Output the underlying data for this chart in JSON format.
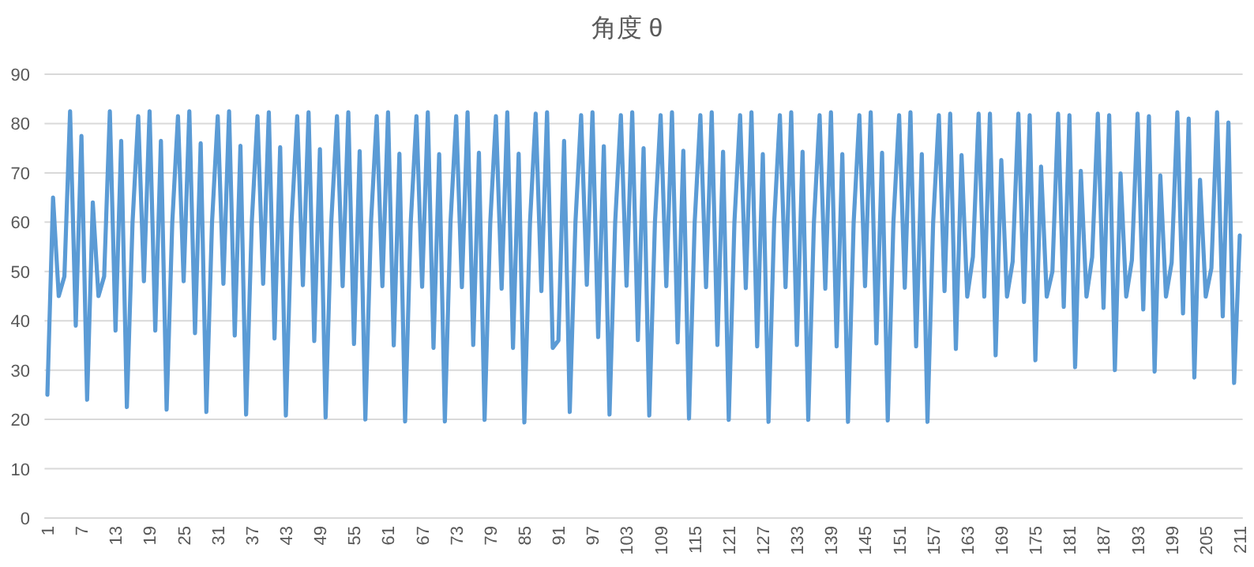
{
  "chart_data": {
    "type": "line",
    "title": "角度 θ",
    "categories": [
      "1",
      null,
      null,
      null,
      null,
      null,
      "7",
      null,
      null,
      null,
      null,
      null,
      "13",
      null,
      null,
      null,
      null,
      null,
      "19",
      null,
      null,
      null,
      null,
      null,
      "25",
      null,
      null,
      null,
      null,
      null,
      "31",
      null,
      null,
      null,
      null,
      null,
      "37",
      null,
      null,
      null,
      null,
      null,
      "43",
      null,
      null,
      null,
      null,
      null,
      "49",
      null,
      null,
      null,
      null,
      null,
      "55",
      null,
      null,
      null,
      null,
      null,
      "61",
      null,
      null,
      null,
      null,
      null,
      "67",
      null,
      null,
      null,
      null,
      null,
      "73",
      null,
      null,
      null,
      null,
      null,
      "79",
      null,
      null,
      null,
      null,
      null,
      "85",
      null,
      null,
      null,
      null,
      null,
      "91",
      null,
      null,
      null,
      null,
      null,
      "97",
      null,
      null,
      null,
      null,
      null,
      "103",
      null,
      null,
      null,
      null,
      null,
      "109",
      null,
      null,
      null,
      null,
      null,
      "115",
      null,
      null,
      null,
      null,
      null,
      "121",
      null,
      null,
      null,
      null,
      null,
      "127",
      null,
      null,
      null,
      null,
      null,
      "133",
      null,
      null,
      null,
      null,
      null,
      "139",
      null,
      null,
      null,
      null,
      null,
      "145",
      null,
      null,
      null,
      null,
      null,
      "151",
      null,
      null,
      null,
      null,
      null,
      "157",
      null,
      null,
      null,
      null,
      null,
      "163",
      null,
      null,
      null,
      null,
      null,
      "169",
      null,
      null,
      null,
      null,
      null,
      "175",
      null,
      null,
      null,
      null,
      null,
      "181",
      null,
      null,
      null,
      null,
      null,
      "187",
      null,
      null,
      null,
      null,
      null,
      "193",
      null,
      null,
      null,
      null,
      null,
      "199",
      null,
      null,
      null,
      null,
      null,
      "205",
      null,
      null,
      null,
      null,
      null,
      "211"
    ],
    "series": [
      {
        "color": "#5b9bd5",
        "values": [
          25,
          65,
          45,
          49,
          82.5,
          39,
          77.5,
          24,
          64,
          45,
          49,
          82.5,
          38,
          76.5,
          22.5,
          60,
          81.5,
          48,
          82.5,
          38,
          76.5,
          22,
          60,
          81.5,
          48,
          82.5,
          37.5,
          76,
          21.5,
          60,
          81.5,
          47.5,
          82.5,
          37,
          75.5,
          21,
          60,
          81.5,
          47.5,
          82.3,
          36.4,
          75.2,
          20.8,
          60,
          81.5,
          47.2,
          82.3,
          35.9,
          74.8,
          20.4,
          60,
          81.5,
          47,
          82.3,
          35.3,
          74.4,
          20,
          60,
          81.5,
          47,
          82.3,
          35,
          73.9,
          19.6,
          60,
          81.5,
          46.9,
          82.3,
          34.5,
          73.8,
          19.6,
          60,
          81.5,
          46.8,
          82.3,
          35.1,
          74.1,
          19.9,
          60,
          81.5,
          46.5,
          82.3,
          34.5,
          73.9,
          19.4,
          60,
          82,
          46,
          82.3,
          34.5,
          36,
          76.5,
          21.5,
          60,
          81.7,
          47.3,
          82.3,
          36.7,
          75.4,
          21,
          60,
          81.7,
          47.1,
          82.3,
          36.1,
          75,
          20.8,
          60,
          81.7,
          47,
          82.3,
          35.6,
          74.5,
          20.2,
          60,
          81.7,
          46.8,
          82.3,
          35.1,
          74.3,
          19.9,
          60,
          81.7,
          46.6,
          82.3,
          34.8,
          73.8,
          19.5,
          60,
          81.7,
          46.8,
          82.3,
          35.1,
          74.3,
          19.9,
          60,
          81.7,
          46.5,
          82.3,
          34.8,
          73.8,
          19.5,
          60,
          81.7,
          47,
          82.3,
          35.4,
          74.1,
          19.8,
          60,
          81.7,
          46.7,
          82.3,
          34.8,
          73.8,
          19.5,
          60,
          81.7,
          46,
          82,
          34.3,
          73.6,
          44.9,
          53,
          82,
          44.9,
          82,
          33,
          72.6,
          44.9,
          52,
          82,
          43.8,
          81.7,
          32,
          71.3,
          44.9,
          50,
          82,
          42.8,
          81.7,
          30.6,
          70.4,
          44.9,
          52.9,
          82,
          42.6,
          81.7,
          30,
          69.9,
          44.9,
          52.3,
          82,
          42.3,
          81.5,
          29.7,
          69.5,
          44.9,
          51.8,
          82.3,
          41.5,
          81,
          28.5,
          68.6,
          44.9,
          50.7,
          82.3,
          40.9,
          80.2,
          27.4,
          57.3
        ]
      }
    ],
    "ylim": [
      0,
      90
    ],
    "yticks": [
      0,
      10,
      20,
      30,
      40,
      50,
      60,
      70,
      80,
      90
    ],
    "grid": "y",
    "line_style": "solid"
  }
}
